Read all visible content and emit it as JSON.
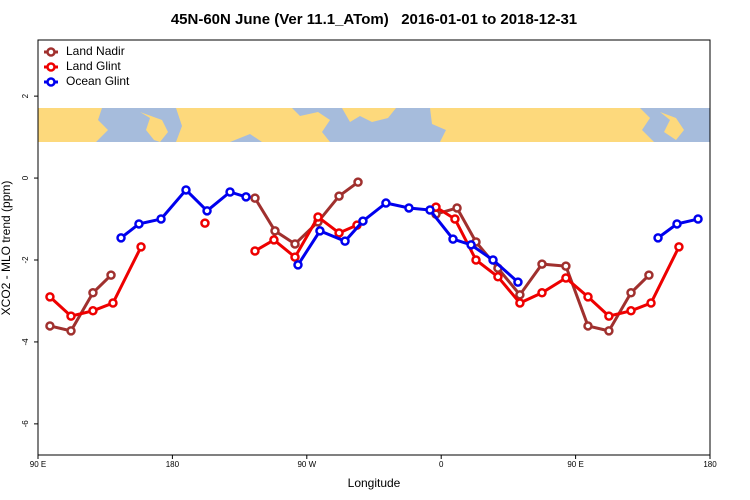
{
  "chart_data": {
    "type": "line",
    "title": "45N-60N June (Ver 11.1_ATom)   2016-01-01 to 2018-12-31",
    "x_label": "Longitude",
    "y_label": "XCO2 - MLO trend (ppm)",
    "xlim": [
      90,
      540
    ],
    "ylim": [
      -6.76,
      3.37
    ],
    "xticks": [
      {
        "value": 90,
        "label": "90 E"
      },
      180,
      {
        "value": 270,
        "label": "90 W"
      },
      {
        "value": 360,
        "label": "0"
      },
      {
        "value": 450,
        "label": "90 E"
      },
      {
        "value": 540,
        "label": "180"
      }
    ],
    "yticks": [
      -6,
      -4,
      -2,
      0,
      2
    ],
    "legend": "top-left",
    "series": [
      {
        "name": "Land Nadir",
        "color": "#a0302e",
        "x": [
          98.0,
          112.1,
          126.8,
          138.9,
          null,
          235.3,
          248.7,
          262.1,
          277.5,
          291.6,
          304.3,
          null,
          356.5,
          370.6,
          383.3,
          398.0,
          412.7,
          427.5,
          443.5,
          458.3,
          472.3,
          487.1,
          499.1
        ],
        "values": [
          -3.61,
          -3.73,
          -2.8,
          -2.37,
          null,
          -0.49,
          -1.29,
          -1.61,
          -1.07,
          -0.44,
          -0.1,
          null,
          -0.88,
          -0.73,
          -1.56,
          -2.2,
          -2.85,
          -2.1,
          -2.15,
          -3.61,
          -3.73,
          -2.8,
          -2.37
        ]
      },
      {
        "name": "Land Glint",
        "color": "#ee0000",
        "x": [
          98.0,
          112.1,
          126.8,
          140.2,
          159.0,
          null,
          201.8,
          null,
          235.3,
          248.0,
          262.1,
          277.5,
          291.6,
          303.6,
          null,
          356.5,
          369.2,
          383.3,
          398.0,
          412.7,
          427.5,
          443.5,
          458.3,
          472.3,
          487.1,
          500.5,
          519.2
        ],
        "values": [
          -2.9,
          -3.37,
          -3.24,
          -3.05,
          -1.68,
          null,
          -1.1,
          null,
          -1.78,
          -1.51,
          -1.93,
          -0.95,
          -1.34,
          -1.15,
          null,
          -0.71,
          -1.0,
          -2.0,
          -2.41,
          -3.05,
          -2.8,
          -2.44,
          -2.9,
          -3.37,
          -3.24,
          -3.05,
          -1.68
        ]
      },
      {
        "name": "Ocean Glint",
        "color": "#0000ee",
        "x": [
          145.6,
          157.6,
          172.4,
          189.1,
          203.2,
          218.6,
          229.3,
          null,
          264.1,
          278.8,
          295.6,
          307.6,
          323.0,
          338.4,
          352.5,
          367.9,
          380.0,
          394.7,
          411.4,
          null,
          505.2,
          517.9,
          532.0
        ],
        "values": [
          -1.46,
          -1.12,
          -1.0,
          -0.29,
          -0.8,
          -0.34,
          -0.46,
          null,
          -2.12,
          -1.29,
          -1.54,
          -1.05,
          -0.61,
          -0.73,
          -0.78,
          -1.49,
          -1.63,
          -2.0,
          -2.54,
          null,
          -1.46,
          -1.12,
          -1.0
        ]
      }
    ]
  }
}
